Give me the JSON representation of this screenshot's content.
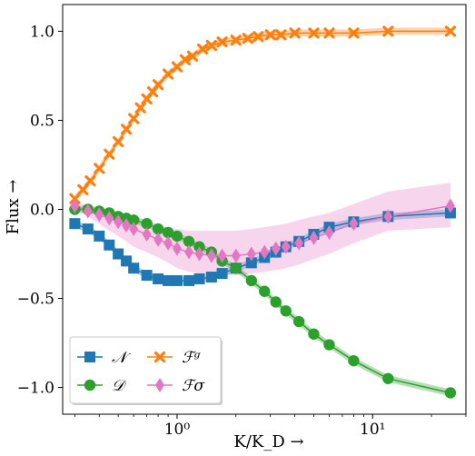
{
  "chart_data": {
    "type": "line",
    "xlabel": "K/K_D →",
    "ylabel": "Flux →",
    "xscale": "log",
    "xlim": [
      0.26,
      30
    ],
    "ylim": [
      -1.15,
      1.15
    ],
    "yticks": [
      1.0,
      0.5,
      0.0,
      -0.5,
      -1.0
    ],
    "ytick_labels": [
      "1.0",
      "0.5",
      "0.0",
      "−0.5",
      "−1.0"
    ],
    "xticks": [
      1,
      10
    ],
    "xtick_labels": [
      "10⁰",
      "10¹"
    ],
    "grid": false,
    "legend_position": "lower-left",
    "legend_entries": [
      {
        "label": "𝒩",
        "series": "N"
      },
      {
        "label": "𝒟",
        "series": "D"
      },
      {
        "label": "ℱᵍ",
        "series": "Fg"
      },
      {
        "label": "ℱσ",
        "series": "Fs"
      }
    ],
    "series": [
      {
        "id": "N",
        "color": "#1f77b4",
        "marker": "square",
        "band": 0.02,
        "x": [
          0.3,
          0.35,
          0.4,
          0.45,
          0.5,
          0.55,
          0.6,
          0.7,
          0.8,
          0.9,
          1.0,
          1.15,
          1.3,
          1.5,
          1.7,
          2.0,
          2.4,
          2.8,
          3.2,
          3.6,
          4.2,
          5.0,
          6.0,
          8.0,
          12.0,
          25.0
        ],
        "y": [
          -0.08,
          -0.11,
          -0.15,
          -0.2,
          -0.25,
          -0.29,
          -0.33,
          -0.37,
          -0.39,
          -0.4,
          -0.4,
          -0.4,
          -0.39,
          -0.38,
          -0.36,
          -0.33,
          -0.3,
          -0.27,
          -0.24,
          -0.21,
          -0.18,
          -0.14,
          -0.1,
          -0.07,
          -0.04,
          -0.02
        ]
      },
      {
        "id": "D",
        "color": "#2ca02c",
        "marker": "circle",
        "band": 0.02,
        "x": [
          0.3,
          0.35,
          0.4,
          0.45,
          0.5,
          0.55,
          0.6,
          0.7,
          0.8,
          0.9,
          1.0,
          1.15,
          1.3,
          1.5,
          1.7,
          2.0,
          2.4,
          2.8,
          3.2,
          3.6,
          4.2,
          5.0,
          6.0,
          8.0,
          12.0,
          25.0
        ],
        "y": [
          0.0,
          0.0,
          -0.01,
          -0.02,
          -0.04,
          -0.05,
          -0.06,
          -0.08,
          -0.11,
          -0.13,
          -0.15,
          -0.18,
          -0.21,
          -0.24,
          -0.29,
          -0.33,
          -0.4,
          -0.46,
          -0.52,
          -0.57,
          -0.63,
          -0.7,
          -0.76,
          -0.85,
          -0.95,
          -1.03
        ]
      },
      {
        "id": "Fg",
        "color": "#ff7f0e",
        "marker": "x",
        "band": 0.02,
        "x": [
          0.3,
          0.33,
          0.36,
          0.4,
          0.45,
          0.5,
          0.55,
          0.6,
          0.65,
          0.7,
          0.75,
          0.8,
          0.9,
          1.0,
          1.1,
          1.2,
          1.35,
          1.5,
          1.7,
          2.0,
          2.3,
          2.6,
          3.0,
          3.4,
          4.0,
          5.0,
          6.0,
          8.0,
          12.0,
          25.0
        ],
        "y": [
          0.06,
          0.11,
          0.16,
          0.23,
          0.31,
          0.38,
          0.45,
          0.51,
          0.57,
          0.62,
          0.66,
          0.7,
          0.76,
          0.8,
          0.84,
          0.86,
          0.9,
          0.92,
          0.94,
          0.95,
          0.96,
          0.97,
          0.98,
          0.98,
          0.99,
          0.99,
          0.99,
          0.99,
          1.0,
          1.0
        ]
      },
      {
        "id": "Fs",
        "color": "#e377c2",
        "marker": "diamond",
        "band_lower": [
          0.0,
          -0.04,
          -0.08,
          -0.12,
          -0.15,
          -0.18,
          -0.21,
          -0.24,
          -0.27,
          -0.3,
          -0.33,
          -0.35,
          -0.36,
          -0.37,
          -0.37,
          -0.37,
          -0.36,
          -0.35,
          -0.34,
          -0.33,
          -0.31,
          -0.28,
          -0.25,
          -0.19,
          -0.12,
          -0.1
        ],
        "band_upper": [
          0.04,
          0.02,
          0.0,
          -0.02,
          -0.03,
          -0.05,
          -0.06,
          -0.08,
          -0.09,
          -0.1,
          -0.11,
          -0.12,
          -0.12,
          -0.12,
          -0.12,
          -0.12,
          -0.11,
          -0.1,
          -0.09,
          -0.08,
          -0.06,
          -0.04,
          -0.02,
          0.03,
          0.1,
          0.15
        ],
        "x": [
          0.3,
          0.35,
          0.4,
          0.45,
          0.5,
          0.55,
          0.6,
          0.7,
          0.8,
          0.9,
          1.0,
          1.15,
          1.3,
          1.5,
          1.7,
          2.0,
          2.4,
          2.8,
          3.2,
          3.6,
          4.2,
          5.0,
          6.0,
          8.0,
          12.0,
          25.0
        ],
        "y": [
          0.02,
          -0.01,
          -0.03,
          -0.05,
          -0.07,
          -0.09,
          -0.11,
          -0.14,
          -0.17,
          -0.19,
          -0.22,
          -0.24,
          -0.25,
          -0.26,
          -0.26,
          -0.26,
          -0.25,
          -0.24,
          -0.22,
          -0.21,
          -0.19,
          -0.16,
          -0.13,
          -0.08,
          -0.04,
          0.02
        ]
      }
    ]
  }
}
